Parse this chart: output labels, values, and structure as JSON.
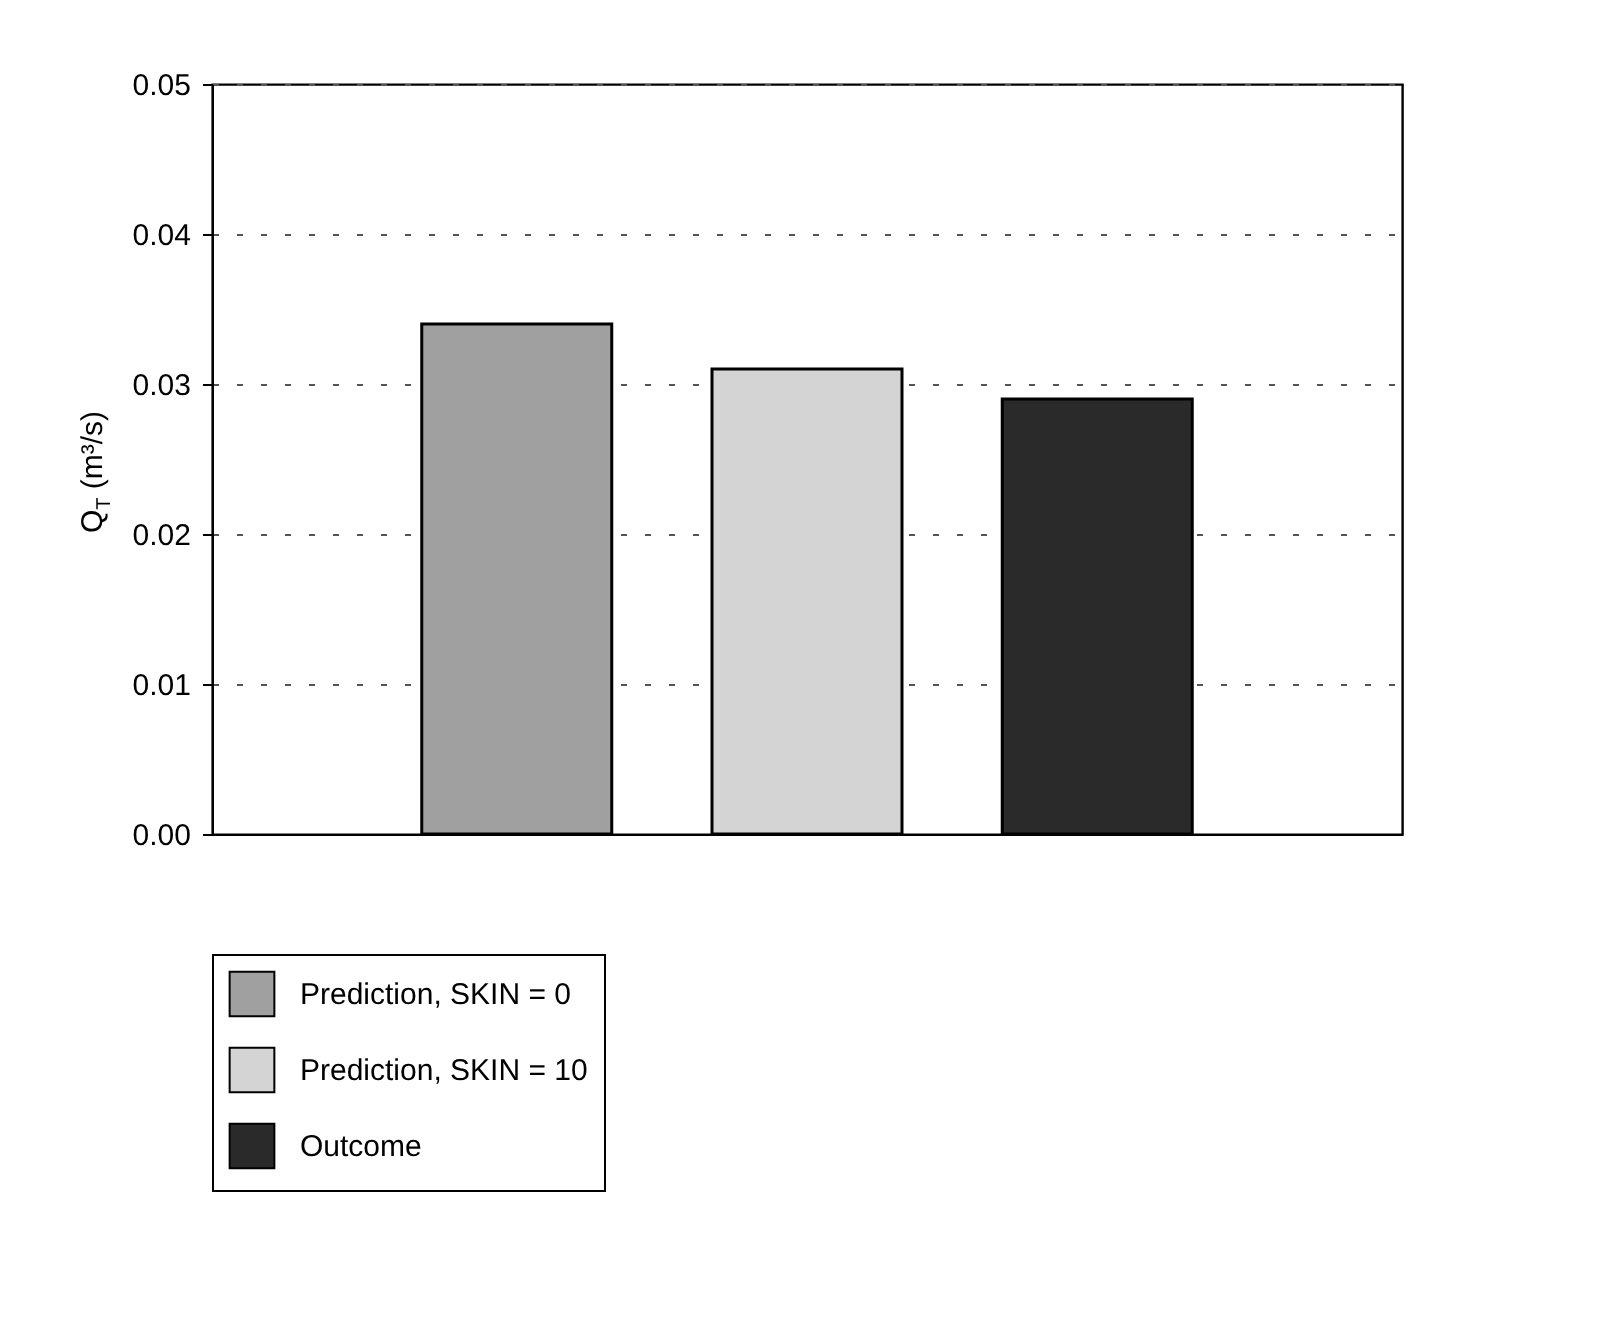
{
  "chart_data": {
    "type": "bar",
    "ylabel": "Q$_{T}$ (m³/s)",
    "categories": [
      null,
      null,
      null
    ],
    "series": [
      {
        "name": "Prediction, SKIN = 0",
        "color": "#a0a0a0",
        "values": [
          0.034,
          null,
          null
        ]
      },
      {
        "name": "Prediction, SKIN = 10",
        "color": "#d4d4d4",
        "values": [
          null,
          0.031,
          null
        ]
      },
      {
        "name": "Outcome",
        "color": "#2a2a2a",
        "values": [
          null,
          null,
          0.029
        ]
      }
    ],
    "ylim": [
      0,
      0.05
    ],
    "yticks": [
      {
        "value": 0,
        "label": "0.00"
      },
      {
        "value": 0.01,
        "label": "0.01"
      },
      {
        "value": 0.02,
        "label": "0.02"
      },
      {
        "value": 0.03,
        "label": "0.03"
      },
      {
        "value": 0.04,
        "label": "0.04"
      },
      {
        "value": 0.05,
        "label": "0.05"
      }
    ],
    "grid": "y",
    "legend": "bottom",
    "tick_labels": "y"
  }
}
